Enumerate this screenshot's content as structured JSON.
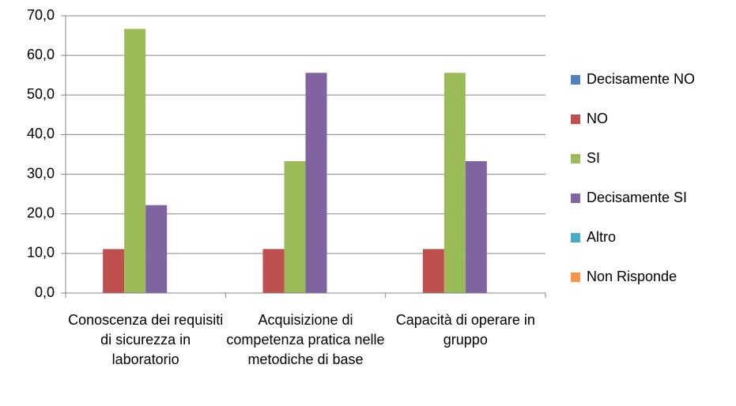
{
  "chart_data": {
    "type": "bar",
    "categories": [
      "Conoscenza dei requisiti di sicurezza in laboratorio",
      "Acquisizione di competenza pratica nelle metodiche di base",
      "Capacità di operare in gruppo"
    ],
    "series": [
      {
        "name": "Decisamente NO",
        "color": "#4f81bd",
        "values": [
          0,
          0,
          0
        ]
      },
      {
        "name": "NO",
        "color": "#c0504d",
        "values": [
          11.1,
          11.1,
          11.1
        ]
      },
      {
        "name": "SI",
        "color": "#9bbb59",
        "values": [
          66.7,
          33.3,
          55.6
        ]
      },
      {
        "name": "Decisamente SI",
        "color": "#8064a2",
        "values": [
          22.2,
          55.6,
          33.3
        ]
      },
      {
        "name": "Altro",
        "color": "#4bacc6",
        "values": [
          0,
          0,
          0
        ]
      },
      {
        "name": "Non Risponde",
        "color": "#f79646",
        "values": [
          0,
          0,
          0
        ]
      }
    ],
    "ylim": [
      0,
      70
    ],
    "yticks": [
      {
        "value": 0,
        "label": "0,0"
      },
      {
        "value": 10,
        "label": "10,0"
      },
      {
        "value": 20,
        "label": "20,0"
      },
      {
        "value": 30,
        "label": "30,0"
      },
      {
        "value": 40,
        "label": "40,0"
      },
      {
        "value": 50,
        "label": "50,0"
      },
      {
        "value": 60,
        "label": "60,0"
      },
      {
        "value": 70,
        "label": "70,0"
      }
    ],
    "grid": true,
    "legend": "right"
  }
}
